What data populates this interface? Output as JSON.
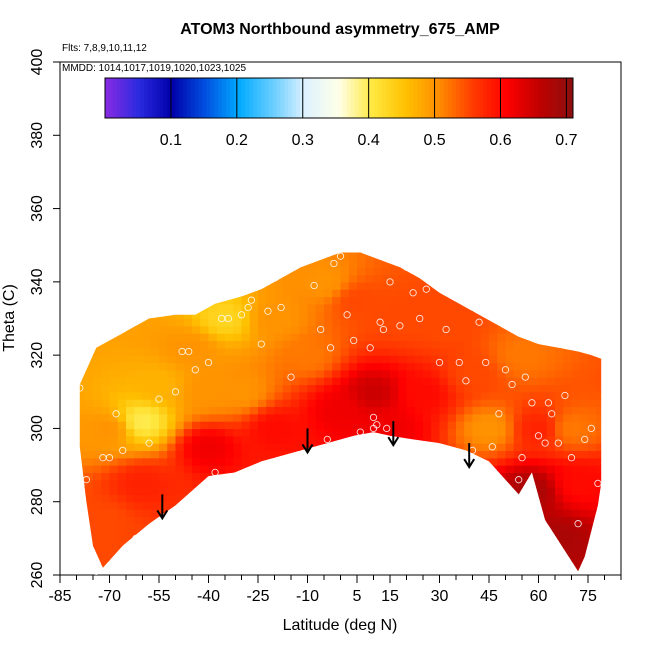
{
  "chart_data": {
    "type": "heatmap",
    "title": "ATOM3 Northbound asymmetry_675_AMP",
    "subtitle_flights": "Flts: 7,8,9,10,11,12",
    "subtitle_dates": "MMDD: 1014,1017,1019,1020,1023,1025",
    "xlabel": "Latitude (deg N)",
    "ylabel": "Theta (C)",
    "xlim": [
      -85,
      85
    ],
    "ylim": [
      260,
      400
    ],
    "x_ticks": [
      -85,
      -70,
      -55,
      -40,
      -25,
      -10,
      5,
      15,
      30,
      45,
      60,
      75
    ],
    "x_tick_labels": [
      "-85",
      "-70",
      "-55",
      "-40",
      "-25",
      "-10",
      "5",
      "15",
      "30",
      "45",
      "60",
      "75"
    ],
    "y_ticks": [
      260,
      280,
      300,
      320,
      340,
      360,
      380,
      400
    ],
    "y_tick_labels": [
      "260",
      "280",
      "300",
      "320",
      "340",
      "360",
      "380",
      "400"
    ],
    "colorbar": {
      "range": [
        0,
        0.71
      ],
      "ticks": [
        0.1,
        0.2,
        0.3,
        0.4,
        0.5,
        0.6,
        0.7
      ],
      "tick_labels": [
        "0.1",
        "0.2",
        "0.3",
        "0.4",
        "0.5",
        "0.6",
        "0.7"
      ],
      "colors": [
        "#8a2be2",
        "#2b2be0",
        "#0000aa",
        "#0050e0",
        "#00aaff",
        "#66ccff",
        "#dff2ff",
        "#ffffe8",
        "#ffe840",
        "#ffc000",
        "#ff8c00",
        "#ff3c00",
        "#ff0000",
        "#c00000",
        "#8b1010"
      ]
    },
    "arrows": [
      {
        "lat": -54,
        "theta": 282
      },
      {
        "lat": -10,
        "theta": 300
      },
      {
        "lat": 16,
        "theta": 302
      },
      {
        "lat": 39,
        "theta": 296
      }
    ],
    "domain_boundary": [
      [
        -79,
        312
      ],
      [
        -74,
        322
      ],
      [
        -66,
        326
      ],
      [
        -58,
        330
      ],
      [
        -50,
        331
      ],
      [
        -44,
        331
      ],
      [
        -38,
        334
      ],
      [
        -30,
        336
      ],
      [
        -24,
        338
      ],
      [
        -18,
        341
      ],
      [
        -12,
        344
      ],
      [
        -6,
        346
      ],
      [
        0,
        348
      ],
      [
        6,
        348
      ],
      [
        12,
        346
      ],
      [
        18,
        344
      ],
      [
        24,
        341
      ],
      [
        30,
        337
      ],
      [
        36,
        334
      ],
      [
        42,
        331
      ],
      [
        48,
        328
      ],
      [
        54,
        325
      ],
      [
        60,
        323
      ],
      [
        66,
        322
      ],
      [
        72,
        321
      ],
      [
        76,
        320
      ],
      [
        79,
        319
      ],
      [
        79,
        285
      ],
      [
        78,
        279
      ],
      [
        76,
        272
      ],
      [
        74,
        265
      ],
      [
        72,
        261
      ],
      [
        62,
        275
      ],
      [
        58,
        288
      ],
      [
        54,
        282
      ],
      [
        50,
        286
      ],
      [
        45,
        291
      ],
      [
        38,
        294
      ],
      [
        30,
        296
      ],
      [
        22,
        297
      ],
      [
        15,
        298
      ],
      [
        10,
        299
      ],
      [
        4,
        298
      ],
      [
        -4,
        296
      ],
      [
        -12,
        294
      ],
      [
        -24,
        291
      ],
      [
        -32,
        288
      ],
      [
        -40,
        287
      ],
      [
        -50,
        279
      ],
      [
        -58,
        274
      ],
      [
        -66,
        268
      ],
      [
        -72,
        262
      ],
      [
        -75,
        268
      ],
      [
        -77,
        280
      ],
      [
        -79,
        295
      ]
    ],
    "value_field": [
      {
        "lat": -70,
        "theta": 300,
        "value": 0.5
      },
      {
        "lat": -60,
        "theta": 302,
        "value": 0.4
      },
      {
        "lat": -55,
        "theta": 312,
        "value": 0.47
      },
      {
        "lat": -45,
        "theta": 322,
        "value": 0.5
      },
      {
        "lat": -35,
        "theta": 330,
        "value": 0.43
      },
      {
        "lat": -20,
        "theta": 330,
        "value": 0.5
      },
      {
        "lat": -30,
        "theta": 310,
        "value": 0.5
      },
      {
        "lat": -10,
        "theta": 320,
        "value": 0.52
      },
      {
        "lat": -5,
        "theta": 340,
        "value": 0.5
      },
      {
        "lat": 5,
        "theta": 335,
        "value": 0.55
      },
      {
        "lat": 10,
        "theta": 310,
        "value": 0.65
      },
      {
        "lat": 15,
        "theta": 300,
        "value": 0.62
      },
      {
        "lat": 25,
        "theta": 310,
        "value": 0.6
      },
      {
        "lat": 30,
        "theta": 328,
        "value": 0.55
      },
      {
        "lat": 40,
        "theta": 315,
        "value": 0.55
      },
      {
        "lat": 45,
        "theta": 300,
        "value": 0.5
      },
      {
        "lat": 55,
        "theta": 320,
        "value": 0.52
      },
      {
        "lat": 60,
        "theta": 300,
        "value": 0.58
      },
      {
        "lat": 70,
        "theta": 300,
        "value": 0.52
      },
      {
        "lat": 72,
        "theta": 285,
        "value": 0.6
      },
      {
        "lat": 0,
        "theta": 305,
        "value": 0.62
      },
      {
        "lat": -20,
        "theta": 300,
        "value": 0.6
      },
      {
        "lat": -40,
        "theta": 295,
        "value": 0.62
      },
      {
        "lat": -60,
        "theta": 285,
        "value": 0.58
      },
      {
        "lat": -72,
        "theta": 275,
        "value": 0.55
      },
      {
        "lat": 20,
        "theta": 330,
        "value": 0.55
      },
      {
        "lat": -40,
        "theta": 310,
        "value": 0.5
      },
      {
        "lat": 65,
        "theta": 270,
        "value": 0.68
      },
      {
        "lat": 58,
        "theta": 283,
        "value": 0.68
      }
    ],
    "observations": [
      [
        -79,
        311
      ],
      [
        -77,
        286
      ],
      [
        -74,
        261
      ],
      [
        -72,
        292
      ],
      [
        -70,
        292
      ],
      [
        -68,
        304
      ],
      [
        -66,
        294
      ],
      [
        -62,
        270
      ],
      [
        -58,
        296
      ],
      [
        -55,
        308
      ],
      [
        -50,
        310
      ],
      [
        -48,
        321
      ],
      [
        -46,
        321
      ],
      [
        -44,
        316
      ],
      [
        -40,
        318
      ],
      [
        -38,
        288
      ],
      [
        -36,
        330
      ],
      [
        -34,
        330
      ],
      [
        -30,
        331
      ],
      [
        -28,
        333
      ],
      [
        -27,
        335
      ],
      [
        -24,
        323
      ],
      [
        -22,
        332
      ],
      [
        -20,
        341
      ],
      [
        -18,
        333
      ],
      [
        -15,
        314
      ],
      [
        -13,
        345
      ],
      [
        -10,
        346
      ],
      [
        -8,
        339
      ],
      [
        -6,
        327
      ],
      [
        -4,
        297
      ],
      [
        -3,
        322
      ],
      [
        -2,
        345
      ],
      [
        0,
        347
      ],
      [
        2,
        331
      ],
      [
        4,
        324
      ],
      [
        6,
        299
      ],
      [
        9,
        322
      ],
      [
        10,
        303
      ],
      [
        10,
        300
      ],
      [
        11,
        301
      ],
      [
        12,
        329
      ],
      [
        13,
        327
      ],
      [
        14,
        300
      ],
      [
        15,
        340
      ],
      [
        16,
        346
      ],
      [
        18,
        328
      ],
      [
        20,
        344
      ],
      [
        22,
        337
      ],
      [
        24,
        330
      ],
      [
        26,
        338
      ],
      [
        30,
        318
      ],
      [
        32,
        327
      ],
      [
        34,
        337
      ],
      [
        36,
        318
      ],
      [
        38,
        313
      ],
      [
        40,
        294
      ],
      [
        42,
        329
      ],
      [
        44,
        318
      ],
      [
        46,
        295
      ],
      [
        48,
        304
      ],
      [
        50,
        316
      ],
      [
        52,
        312
      ],
      [
        54,
        286
      ],
      [
        55,
        292
      ],
      [
        56,
        314
      ],
      [
        58,
        307
      ],
      [
        60,
        298
      ],
      [
        62,
        296
      ],
      [
        63,
        307
      ],
      [
        64,
        304
      ],
      [
        66,
        296
      ],
      [
        68,
        309
      ],
      [
        70,
        292
      ],
      [
        72,
        274
      ],
      [
        74,
        297
      ],
      [
        76,
        300
      ],
      [
        78,
        285
      ]
    ]
  }
}
